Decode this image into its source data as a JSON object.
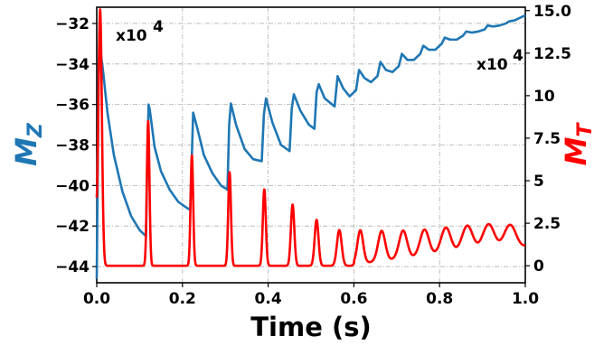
{
  "chart_data": {
    "type": "line",
    "x_ticks": [
      "0.0",
      "0.2",
      "0.4",
      "0.6",
      "0.8",
      "1.0"
    ],
    "x_tick_values": [
      0,
      0.2,
      0.4,
      0.6,
      0.8,
      1.0
    ],
    "xlim": [
      0,
      1
    ],
    "xlabel": "Time (s)",
    "grid": true,
    "left_axis": {
      "label_base": "M",
      "label_sub": "Z",
      "color": "#1f77b4",
      "ylim": [
        -44.8,
        -31.2
      ],
      "ticks": [
        "−32",
        "−34",
        "−36",
        "−38",
        "−40",
        "−42",
        "−44"
      ],
      "tick_values": [
        -32,
        -34,
        -36,
        -38,
        -40,
        -42,
        -44
      ],
      "scale_note": {
        "base": "x10",
        "exp": "4"
      }
    },
    "right_axis": {
      "label_base": "M",
      "label_sub": "T",
      "color": "#ff0000",
      "ylim": [
        -1.0,
        15.2
      ],
      "ticks": [
        "15.0",
        "12.5",
        "10",
        "7.5",
        "5",
        "2.5",
        "0"
      ],
      "tick_values": [
        15.0,
        12.5,
        10,
        7.5,
        5,
        2.5,
        0
      ],
      "scale_note": {
        "base": "x10",
        "exp": "4"
      }
    },
    "series": [
      {
        "axis": "left",
        "color": "#1f77b4",
        "x": [
          0.0,
          0.002,
          0.004,
          0.006,
          0.008,
          0.015,
          0.025,
          0.04,
          0.06,
          0.08,
          0.1,
          0.115,
          0.118,
          0.121,
          0.124,
          0.135,
          0.15,
          0.17,
          0.19,
          0.21,
          0.218,
          0.222,
          0.225,
          0.235,
          0.25,
          0.27,
          0.29,
          0.305,
          0.309,
          0.313,
          0.325,
          0.345,
          0.365,
          0.385,
          0.39,
          0.395,
          0.41,
          0.43,
          0.45,
          0.455,
          0.46,
          0.475,
          0.495,
          0.508,
          0.513,
          0.518,
          0.532,
          0.555,
          0.562,
          0.575,
          0.59,
          0.605,
          0.612,
          0.625,
          0.64,
          0.655,
          0.662,
          0.675,
          0.69,
          0.705,
          0.712,
          0.725,
          0.74,
          0.755,
          0.762,
          0.775,
          0.79,
          0.805,
          0.812,
          0.825,
          0.84,
          0.855,
          0.862,
          0.875,
          0.89,
          0.905,
          0.912,
          0.925,
          0.94,
          0.955,
          0.962,
          0.975,
          0.99,
          1.0
        ],
        "y": [
          -44.6,
          -40.0,
          -35.0,
          -33.6,
          -33.2,
          -34.4,
          -36.4,
          -38.5,
          -40.3,
          -41.5,
          -42.2,
          -42.5,
          -38.5,
          -36.0,
          -36.3,
          -38.1,
          -39.3,
          -40.2,
          -40.8,
          -41.1,
          -41.2,
          -38.5,
          -36.4,
          -37.2,
          -38.5,
          -39.4,
          -40.0,
          -40.2,
          -37.0,
          -35.95,
          -37.0,
          -38.2,
          -38.7,
          -38.8,
          -36.5,
          -35.7,
          -36.9,
          -38.0,
          -38.3,
          -36.2,
          -35.5,
          -36.3,
          -37.0,
          -37.2,
          -35.4,
          -35.0,
          -35.7,
          -36.1,
          -34.6,
          -35.2,
          -35.6,
          -35.3,
          -34.3,
          -34.7,
          -34.9,
          -34.6,
          -33.9,
          -34.3,
          -34.4,
          -34.1,
          -33.5,
          -33.8,
          -33.8,
          -33.5,
          -33.1,
          -33.3,
          -33.3,
          -33.0,
          -32.7,
          -32.8,
          -32.8,
          -32.6,
          -32.4,
          -32.45,
          -32.4,
          -32.3,
          -32.1,
          -32.15,
          -32.1,
          -32.0,
          -31.9,
          -31.85,
          -31.7,
          -31.6
        ]
      },
      {
        "axis": "right",
        "color": "#ff0000",
        "spikes": [
          {
            "x": 0.008,
            "peak": 14.8,
            "width": 0.004
          },
          {
            "x": 0.12,
            "peak": 8.5,
            "width": 0.003
          },
          {
            "x": 0.222,
            "peak": 6.5,
            "width": 0.003
          },
          {
            "x": 0.31,
            "peak": 5.5,
            "width": 0.0032
          },
          {
            "x": 0.391,
            "peak": 4.5,
            "width": 0.0035
          },
          {
            "x": 0.457,
            "peak": 3.6,
            "width": 0.004
          },
          {
            "x": 0.513,
            "peak": 2.7,
            "width": 0.0045
          },
          {
            "x": 0.566,
            "peak": 2.1,
            "width": 0.0055
          },
          {
            "x": 0.615,
            "peak": 1.8,
            "width": 0.0065
          },
          {
            "x": 0.665,
            "peak": 1.6,
            "width": 0.008
          },
          {
            "x": 0.715,
            "peak": 1.45,
            "width": 0.009
          },
          {
            "x": 0.765,
            "peak": 1.35,
            "width": 0.01
          },
          {
            "x": 0.815,
            "peak": 1.3,
            "width": 0.011
          },
          {
            "x": 0.865,
            "peak": 1.25,
            "width": 0.012
          },
          {
            "x": 0.915,
            "peak": 1.22,
            "width": 0.013
          },
          {
            "x": 0.965,
            "peak": 1.18,
            "width": 0.014
          }
        ],
        "baseline_start": 0.0,
        "baseline_end": 1.15,
        "initial": 2.0
      }
    ]
  }
}
